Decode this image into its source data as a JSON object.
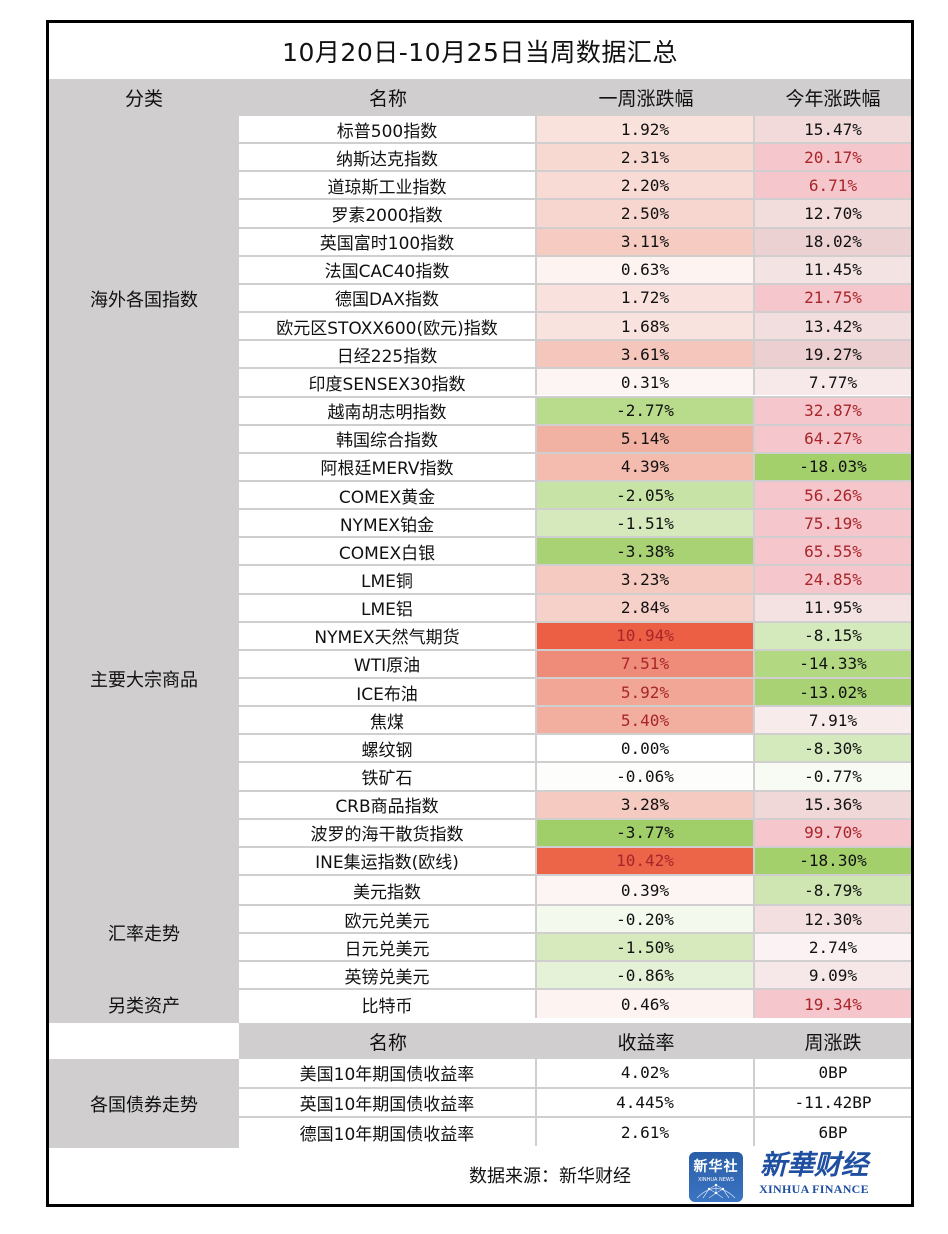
{
  "title": "10月20日-10月25日当周数据汇总",
  "header": {
    "category": "分类",
    "name": "名称",
    "week": "一周涨跌幅",
    "year": "今年涨跌幅"
  },
  "categories": [
    {
      "label": "海外各国指数",
      "first_row": 0,
      "row_count": 13
    },
    {
      "label": "主要大宗商品",
      "first_row": 13,
      "row_count": 14
    },
    {
      "label": "汇率走势",
      "first_row": 27,
      "row_count": 4
    },
    {
      "label": "另类资产",
      "first_row": 31,
      "row_count": 1
    }
  ],
  "rows": [
    {
      "name": "标普500指数",
      "week": "1.92%",
      "week_bg": "#f9e1dc",
      "week_red": false,
      "year": "15.47%",
      "year_bg": "#f2d9da",
      "year_red": false
    },
    {
      "name": "纳斯达克指数",
      "week": "2.31%",
      "week_bg": "#f7d9d2",
      "week_red": false,
      "year": "20.17%",
      "year_bg": "#f5c6cc",
      "year_red": true
    },
    {
      "name": "道琼斯工业指数",
      "week": "2.20%",
      "week_bg": "#f8dbd4",
      "week_red": false,
      "year": "6.71%",
      "year_bg": "#f5c6cc",
      "year_red": true
    },
    {
      "name": "罗素2000指数",
      "week": "2.50%",
      "week_bg": "#f7d6cf",
      "week_red": false,
      "year": "12.70%",
      "year_bg": "#f3dcdc",
      "year_red": false
    },
    {
      "name": "英国富时100指数",
      "week": "3.11%",
      "week_bg": "#f5cbc2",
      "week_red": false,
      "year": "18.02%",
      "year_bg": "#ecd1d2",
      "year_red": false
    },
    {
      "name": "法国CAC40指数",
      "week": "0.63%",
      "week_bg": "#fdf3f1",
      "week_red": false,
      "year": "11.45%",
      "year_bg": "#f4e3e3",
      "year_red": false
    },
    {
      "name": "德国DAX指数",
      "week": "1.72%",
      "week_bg": "#f9e2dd",
      "week_red": false,
      "year": "21.75%",
      "year_bg": "#f5c6cc",
      "year_red": true
    },
    {
      "name": "欧元区STOXX600(欧元)指数",
      "week": "1.68%",
      "week_bg": "#f9e3de",
      "week_red": false,
      "year": "13.42%",
      "year_bg": "#f3dedf",
      "year_red": false
    },
    {
      "name": "日经225指数",
      "week": "3.61%",
      "week_bg": "#f5c6bc",
      "week_red": false,
      "year": "19.27%",
      "year_bg": "#eccfd0",
      "year_red": false
    },
    {
      "name": "印度SENSEX30指数",
      "week": "0.31%",
      "week_bg": "#fdf5f3",
      "week_red": false,
      "year": "7.77%",
      "year_bg": "#f7e9e9",
      "year_red": false
    },
    {
      "name": "越南胡志明指数",
      "week": "-2.77%",
      "week_bg": "#b8dc8c",
      "week_red": false,
      "year": "32.87%",
      "year_bg": "#f5c6cc",
      "year_red": true
    },
    {
      "name": "韩国综合指数",
      "week": "5.14%",
      "week_bg": "#f2b2a3",
      "week_red": false,
      "year": "64.27%",
      "year_bg": "#f5c6cc",
      "year_red": true
    },
    {
      "name": "阿根廷MERV指数",
      "week": "4.39%",
      "week_bg": "#f4bcaf",
      "week_red": false,
      "year": "-18.03%",
      "year_bg": "#a4d06c",
      "year_red": false
    },
    {
      "name": "COMEX黄金",
      "week": "-2.05%",
      "week_bg": "#c7e3a5",
      "week_red": false,
      "year": "56.26%",
      "year_bg": "#f5c6cc",
      "year_red": true
    },
    {
      "name": "NYMEX铂金",
      "week": "-1.51%",
      "week_bg": "#d5e9bd",
      "week_red": false,
      "year": "75.19%",
      "year_bg": "#f5c6cc",
      "year_red": true
    },
    {
      "name": "COMEX白银",
      "week": "-3.38%",
      "week_bg": "#a9d274",
      "week_red": false,
      "year": "65.55%",
      "year_bg": "#f5c6cc",
      "year_red": true
    },
    {
      "name": "LME铜",
      "week": "3.23%",
      "week_bg": "#f5cac0",
      "week_red": false,
      "year": "24.85%",
      "year_bg": "#f5c6cc",
      "year_red": true
    },
    {
      "name": "LME铝",
      "week": "2.84%",
      "week_bg": "#f6d1c9",
      "week_red": false,
      "year": "11.95%",
      "year_bg": "#f4e2e2",
      "year_red": false
    },
    {
      "name": "NYMEX天然气期货",
      "week": "10.94%",
      "week_bg": "#ec5f44",
      "week_red": true,
      "year": "-8.15%",
      "year_bg": "#d4e9bc",
      "year_red": false
    },
    {
      "name": "WTI原油",
      "week": "7.51%",
      "week_bg": "#ef8c79",
      "week_red": true,
      "year": "-14.33%",
      "year_bg": "#b2d981",
      "year_red": false
    },
    {
      "name": "ICE布油",
      "week": "5.92%",
      "week_bg": "#f2a696",
      "week_red": true,
      "year": "-13.02%",
      "year_bg": "#a9d274",
      "year_red": false
    },
    {
      "name": "焦煤",
      "week": "5.40%",
      "week_bg": "#f2ae9f",
      "week_red": true,
      "year": "7.91%",
      "year_bg": "#f7ebeb",
      "year_red": false
    },
    {
      "name": "螺纹钢",
      "week": "0.00%",
      "week_bg": "#ffffff",
      "week_red": false,
      "year": "-8.30%",
      "year_bg": "#d4e9bc",
      "year_red": false
    },
    {
      "name": "铁矿石",
      "week": "-0.06%",
      "week_bg": "#fdfefb",
      "week_red": false,
      "year": "-0.77%",
      "year_bg": "#f8fbf4",
      "year_red": false
    },
    {
      "name": "CRB商品指数",
      "week": "3.28%",
      "week_bg": "#f5cac0",
      "week_red": false,
      "year": "15.36%",
      "year_bg": "#f0d8d9",
      "year_red": false
    },
    {
      "name": "波罗的海干散货指数",
      "week": "-3.77%",
      "week_bg": "#a0ce68",
      "week_red": false,
      "year": "99.70%",
      "year_bg": "#f5c6cc",
      "year_red": true
    },
    {
      "name": "INE集运指数(欧线)",
      "week": "10.42%",
      "week_bg": "#ec6548",
      "week_red": true,
      "year": "-18.30%",
      "year_bg": "#a4d06c",
      "year_red": false
    },
    {
      "name": "美元指数",
      "week": "0.39%",
      "week_bg": "#fdf5f3",
      "week_red": false,
      "year": "-8.79%",
      "year_bg": "#cfe6b2",
      "year_red": false
    },
    {
      "name": "欧元兑美元",
      "week": "-0.20%",
      "week_bg": "#f3f9ec",
      "week_red": false,
      "year": "12.30%",
      "year_bg": "#f3dfdf",
      "year_red": false
    },
    {
      "name": "日元兑美元",
      "week": "-1.50%",
      "week_bg": "#d6eabe",
      "week_red": false,
      "year": "2.74%",
      "year_bg": "#fbf3f3",
      "year_red": false
    },
    {
      "name": "英镑兑美元",
      "week": "-0.86%",
      "week_bg": "#e6f2d7",
      "week_red": false,
      "year": "9.09%",
      "year_bg": "#f6e8e8",
      "year_red": false
    },
    {
      "name": "比特币",
      "week": "0.46%",
      "week_bg": "#fdf4f2",
      "week_red": false,
      "year": "19.34%",
      "year_bg": "#f5c6cc",
      "year_red": true
    }
  ],
  "bonds": {
    "header": {
      "name": "名称",
      "yield": "收益率",
      "change": "周涨跌"
    },
    "category": "各国债券走势",
    "rows": [
      {
        "name": "美国10年期国债收益率",
        "yield": "4.02%",
        "change": "0BP"
      },
      {
        "name": "英国10年期国债收益率",
        "yield": "4.445%",
        "change": "-11.42BP"
      },
      {
        "name": "德国10年期国债收益率",
        "yield": "2.61%",
        "change": "6BP"
      }
    ]
  },
  "footer": {
    "source": "数据来源：新华财经",
    "logo_news_cn": "新华社",
    "logo_news_en": "XINHUA NEWS",
    "logo_finance_cn": "新華财经",
    "logo_finance_en": "XINHUA FINANCE"
  },
  "colors": {
    "header_gray": "#d0cecf",
    "border": "#000000",
    "red_text": "#a8262a"
  }
}
